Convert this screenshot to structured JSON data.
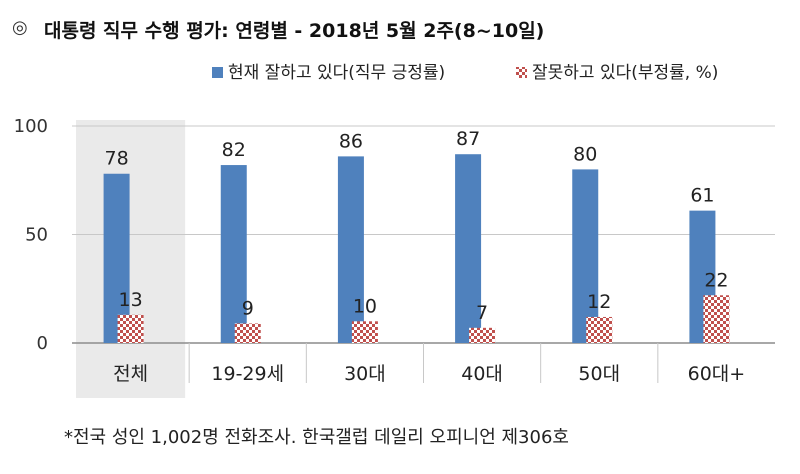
{
  "title_bullet": "◎",
  "title": "대통령 직무 수행 평가: 연령별 - 2018년 5월 2주(8~10일)",
  "footnote": "*전국 성인 1,002명 전화조사. 한국갤럽 데일리 오피니언 제306호",
  "chart_data": {
    "type": "bar",
    "categories": [
      "전체",
      "19-29세",
      "30대",
      "40대",
      "50대",
      "60대+"
    ],
    "series": [
      {
        "name": "현재 잘하고 있다(직무 긍정률)",
        "values": [
          78,
          82,
          86,
          87,
          80,
          61
        ],
        "color": "#4f81bd",
        "pattern": "solid"
      },
      {
        "name": "잘못하고 있다(부정률, %)",
        "values": [
          13,
          9,
          10,
          7,
          12,
          22
        ],
        "color": "#c0504d",
        "pattern": "checker"
      }
    ],
    "ylim": [
      0,
      100
    ],
    "yticks": [
      0,
      50,
      100
    ],
    "grid": true,
    "highlight_category": "전체",
    "highlight_color": "#eaeaea",
    "legend_position": "top-right"
  }
}
